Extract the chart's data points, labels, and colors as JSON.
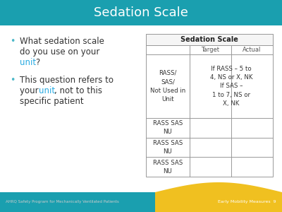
{
  "title": "Sedation Scale",
  "title_bg_color": "#1a9faf",
  "slide_bg_color": "#ffffff",
  "highlight_color": "#29abe2",
  "footer_left": "AHRQ Safety Program for Mechanically Ventilated Patients",
  "footer_right": "Early Mobility Measures  9",
  "bottom_bar_teal": "#1a9faf",
  "bottom_bar_yellow": "#f0c020",
  "table_title": "Sedation Scale",
  "merged_cell_text": "If RASS – 5 to\n4, NS or X, NK\nIf SAS –\n1 to 7, NS or\nX, NK",
  "rass_cell_text": "RASS/\nSAS/\nNot Used in\nUnit",
  "target_label": "Target",
  "actual_label": "Actual",
  "lower_row_text": "RASS SAS\nNU",
  "num_lower_rows": 3
}
